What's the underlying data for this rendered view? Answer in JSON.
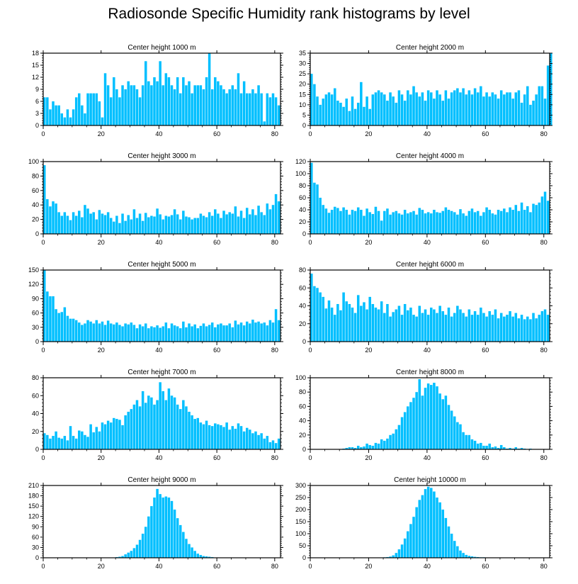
{
  "title": "Radiosonde Specific Humidity rank histograms by level",
  "colors": {
    "bar": "#00bfff",
    "axis": "#000000"
  },
  "chart_data": [
    {
      "type": "bar",
      "title": "Center height 1000 m",
      "xlim": [
        0,
        82
      ],
      "ylim": [
        0,
        18
      ],
      "xticks": [
        0,
        20,
        40,
        60,
        80
      ],
      "yticks": [
        0,
        3,
        6,
        9,
        12,
        15,
        18
      ],
      "values": [
        7,
        7,
        4,
        6,
        5,
        5,
        3,
        2,
        4,
        2,
        4,
        7,
        8,
        5,
        3,
        8,
        8,
        8,
        8,
        6,
        2,
        13,
        10,
        7,
        12,
        9,
        7,
        10,
        9,
        11,
        10,
        10,
        9,
        7,
        10,
        16,
        11,
        10,
        12,
        11,
        16,
        10,
        13,
        12,
        10,
        9,
        12,
        8,
        12,
        10,
        11,
        8,
        10,
        10,
        10,
        9,
        12,
        18,
        9,
        12,
        11,
        10,
        9,
        8,
        9,
        10,
        9,
        13,
        8,
        11,
        8,
        8,
        9,
        8,
        10,
        8,
        1,
        8,
        7,
        8,
        7,
        5
      ]
    },
    {
      "type": "bar",
      "title": "Center height 2000 m",
      "xlim": [
        0,
        82
      ],
      "ylim": [
        0,
        35
      ],
      "xticks": [
        0,
        20,
        40,
        60,
        80
      ],
      "yticks": [
        0,
        5,
        10,
        15,
        20,
        25,
        30,
        35
      ],
      "values": [
        25,
        20,
        14,
        10,
        13,
        15,
        16,
        15,
        18,
        12,
        11,
        9,
        13,
        7,
        14,
        8,
        11,
        21,
        9,
        14,
        8,
        15,
        16,
        17,
        16,
        15,
        12,
        16,
        14,
        11,
        17,
        15,
        12,
        17,
        15,
        19,
        16,
        14,
        16,
        12,
        17,
        16,
        13,
        17,
        15,
        12,
        17,
        13,
        16,
        17,
        18,
        16,
        18,
        15,
        17,
        15,
        18,
        16,
        19,
        14,
        16,
        14,
        16,
        15,
        13,
        17,
        15,
        16,
        16,
        13,
        16,
        17,
        11,
        15,
        19,
        10,
        12,
        15,
        19,
        19,
        13,
        29,
        35
      ]
    },
    {
      "type": "bar",
      "title": "Center height 3000 m",
      "xlim": [
        0,
        82
      ],
      "ylim": [
        0,
        100
      ],
      "xticks": [
        0,
        20,
        40,
        60,
        80
      ],
      "yticks": [
        0,
        20,
        40,
        60,
        80,
        100
      ],
      "values": [
        95,
        48,
        38,
        45,
        42,
        30,
        25,
        30,
        25,
        19,
        30,
        25,
        32,
        23,
        40,
        35,
        28,
        30,
        20,
        33,
        28,
        26,
        30,
        22,
        17,
        25,
        15,
        28,
        18,
        26,
        20,
        34,
        22,
        28,
        18,
        29,
        23,
        25,
        24,
        35,
        27,
        20,
        25,
        24,
        26,
        34,
        27,
        20,
        32,
        24,
        23,
        20,
        22,
        22,
        28,
        25,
        23,
        30,
        25,
        34,
        28,
        22,
        32,
        27,
        30,
        28,
        38,
        24,
        32,
        22,
        36,
        27,
        34,
        26,
        39,
        30,
        26,
        42,
        34,
        40,
        55,
        45
      ]
    },
    {
      "type": "bar",
      "title": "Center height 4000 m",
      "xlim": [
        0,
        82
      ],
      "ylim": [
        0,
        120
      ],
      "xticks": [
        0,
        20,
        40,
        60,
        80
      ],
      "yticks": [
        0,
        20,
        40,
        60,
        80,
        100,
        120
      ],
      "values": [
        118,
        85,
        82,
        60,
        48,
        42,
        35,
        40,
        45,
        43,
        38,
        44,
        40,
        32,
        40,
        38,
        44,
        40,
        30,
        42,
        36,
        33,
        45,
        38,
        22,
        38,
        42,
        32,
        36,
        38,
        34,
        32,
        40,
        34,
        36,
        38,
        32,
        43,
        40,
        34,
        36,
        34,
        40,
        36,
        35,
        38,
        44,
        40,
        38,
        36,
        32,
        41,
        34,
        30,
        38,
        42,
        36,
        38,
        30,
        36,
        44,
        40,
        34,
        32,
        40,
        38,
        42,
        36,
        44,
        40,
        48,
        38,
        52,
        40,
        46,
        36,
        50,
        48,
        52,
        62,
        70,
        55
      ]
    },
    {
      "type": "bar",
      "title": "Center height 5000 m",
      "xlim": [
        0,
        82
      ],
      "ylim": [
        0,
        150
      ],
      "xticks": [
        0,
        20,
        40,
        60,
        80
      ],
      "yticks": [
        0,
        30,
        60,
        90,
        120,
        150
      ],
      "values": [
        150,
        105,
        95,
        95,
        68,
        60,
        62,
        72,
        54,
        48,
        48,
        45,
        40,
        35,
        38,
        45,
        42,
        38,
        45,
        38,
        42,
        35,
        44,
        38,
        36,
        40,
        35,
        32,
        38,
        36,
        40,
        35,
        28,
        36,
        32,
        38,
        28,
        32,
        30,
        34,
        29,
        32,
        40,
        28,
        38,
        34,
        32,
        28,
        42,
        30,
        38,
        32,
        36,
        28,
        33,
        38,
        32,
        35,
        40,
        30,
        36,
        38,
        34,
        34,
        38,
        30,
        44,
        36,
        40,
        34,
        42,
        38,
        46,
        40,
        42,
        38,
        40,
        34,
        45,
        40,
        68,
        45
      ]
    },
    {
      "type": "bar",
      "title": "Center height 6000 m",
      "xlim": [
        0,
        82
      ],
      "ylim": [
        0,
        80
      ],
      "xticks": [
        0,
        20,
        40,
        60,
        80
      ],
      "yticks": [
        0,
        20,
        40,
        60,
        80
      ],
      "values": [
        76,
        62,
        60,
        55,
        50,
        37,
        46,
        38,
        30,
        42,
        35,
        55,
        45,
        42,
        38,
        32,
        52,
        40,
        44,
        36,
        50,
        42,
        38,
        36,
        45,
        32,
        42,
        28,
        33,
        36,
        40,
        30,
        42,
        35,
        38,
        30,
        28,
        40,
        32,
        36,
        30,
        38,
        36,
        32,
        40,
        34,
        30,
        38,
        28,
        32,
        40,
        36,
        32,
        28,
        36,
        30,
        34,
        30,
        38,
        32,
        28,
        34,
        30,
        36,
        26,
        32,
        28,
        30,
        34,
        28,
        32,
        26,
        30,
        25,
        28,
        25,
        32,
        26,
        30,
        34,
        36,
        30
      ]
    },
    {
      "type": "bar",
      "title": "Center height 7000 m",
      "xlim": [
        0,
        82
      ],
      "ylim": [
        0,
        80
      ],
      "xticks": [
        0,
        20,
        40,
        60,
        80
      ],
      "yticks": [
        0,
        20,
        40,
        60,
        80
      ],
      "values": [
        18,
        16,
        12,
        15,
        20,
        13,
        12,
        15,
        10,
        26,
        15,
        12,
        21,
        20,
        16,
        14,
        28,
        19,
        25,
        20,
        30,
        28,
        32,
        30,
        35,
        34,
        33,
        27,
        38,
        42,
        45,
        50,
        55,
        48,
        65,
        52,
        60,
        58,
        50,
        55,
        75,
        65,
        55,
        68,
        60,
        58,
        50,
        45,
        55,
        48,
        42,
        38,
        34,
        35,
        30,
        28,
        32,
        27,
        26,
        29,
        28,
        27,
        25,
        30,
        22,
        26,
        23,
        29,
        26,
        20,
        24,
        22,
        18,
        20,
        16,
        18,
        12,
        15,
        8,
        10,
        7,
        12
      ]
    },
    {
      "type": "bar",
      "title": "Center height 8000 m",
      "xlim": [
        0,
        82
      ],
      "ylim": [
        0,
        100
      ],
      "xticks": [
        0,
        20,
        40,
        60,
        80
      ],
      "yticks": [
        0,
        20,
        40,
        60,
        80,
        100
      ],
      "values": [
        0,
        0,
        0,
        0,
        0,
        0,
        0,
        0,
        0,
        0,
        0,
        1,
        2,
        3,
        3,
        2,
        5,
        3,
        4,
        8,
        6,
        5,
        9,
        8,
        14,
        12,
        15,
        20,
        22,
        28,
        34,
        45,
        52,
        60,
        66,
        72,
        80,
        98,
        75,
        86,
        92,
        90,
        93,
        88,
        78,
        70,
        75,
        62,
        54,
        46,
        38,
        35,
        24,
        20,
        20,
        14,
        12,
        8,
        9,
        5,
        5,
        8,
        3,
        4,
        2,
        6,
        3,
        1,
        2,
        1,
        3,
        1,
        2,
        1,
        0,
        1,
        0,
        0,
        0,
        0,
        0,
        0
      ]
    },
    {
      "type": "bar",
      "title": "Center height 9000 m",
      "xlim": [
        0,
        82
      ],
      "ylim": [
        0,
        210
      ],
      "xticks": [
        0,
        20,
        40,
        60,
        80
      ],
      "yticks": [
        0,
        30,
        60,
        90,
        120,
        150,
        180,
        210
      ],
      "values": [
        0,
        0,
        0,
        0,
        0,
        0,
        0,
        0,
        0,
        0,
        0,
        0,
        0,
        0,
        0,
        0,
        0,
        0,
        0,
        0,
        0,
        0,
        0,
        0,
        0,
        2,
        3,
        5,
        10,
        15,
        20,
        28,
        38,
        52,
        70,
        90,
        120,
        150,
        175,
        200,
        185,
        175,
        178,
        175,
        165,
        140,
        115,
        95,
        75,
        55,
        40,
        30,
        20,
        12,
        8,
        5,
        4,
        3,
        2,
        1,
        1,
        0,
        0,
        0,
        0,
        0,
        0,
        0,
        0,
        0,
        0,
        0,
        0,
        0,
        0,
        0,
        0,
        0,
        0,
        0,
        0,
        0
      ]
    },
    {
      "type": "bar",
      "title": "Center height 10000 m",
      "xlim": [
        0,
        82
      ],
      "ylim": [
        0,
        300
      ],
      "xticks": [
        0,
        20,
        40,
        60,
        80
      ],
      "yticks": [
        0,
        50,
        100,
        150,
        200,
        250,
        300
      ],
      "values": [
        0,
        0,
        0,
        0,
        0,
        0,
        0,
        0,
        0,
        0,
        0,
        0,
        0,
        0,
        0,
        0,
        0,
        0,
        0,
        0,
        0,
        0,
        0,
        0,
        0,
        2,
        3,
        5,
        10,
        20,
        35,
        55,
        80,
        110,
        140,
        170,
        210,
        240,
        260,
        285,
        295,
        290,
        275,
        250,
        230,
        200,
        165,
        130,
        100,
        70,
        48,
        30,
        20,
        12,
        8,
        6,
        4,
        3,
        2,
        2,
        1,
        1,
        0,
        0,
        0,
        0,
        0,
        0,
        0,
        0,
        0,
        0,
        0,
        0,
        0,
        0,
        0,
        0,
        0,
        0,
        0,
        0
      ]
    }
  ]
}
